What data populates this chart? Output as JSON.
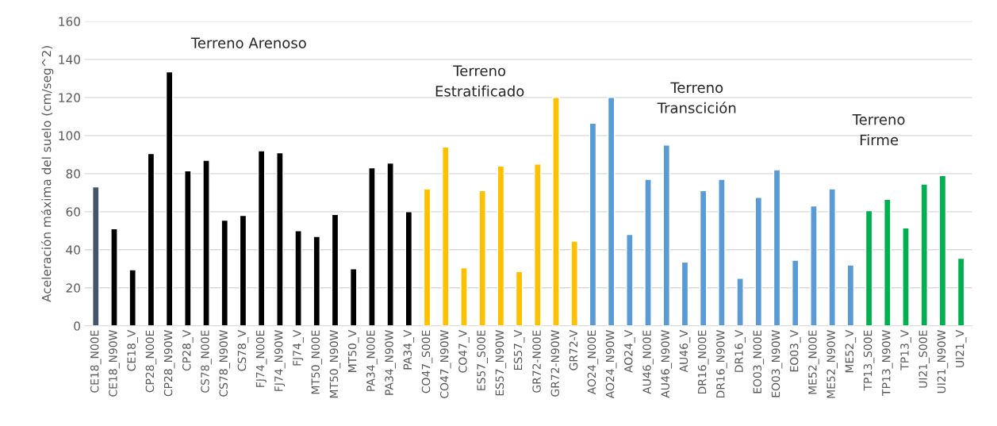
{
  "chart_data": {
    "type": "bar",
    "ylabel": "Aceleración máxima del suelo (cm/seg^2)",
    "categories": [
      "CE18_N00E",
      "CE18_N90W",
      "CE18_V",
      "CP28_N00E",
      "CP28_N90W",
      "CP28_V",
      "CS78_N00E",
      "CS78_N90W",
      "CS78_V",
      "FJ74_N00E",
      "FJ74_N90W",
      "FJ74_V",
      "MT50_N00E",
      "MT50_N90W",
      "MT50_V",
      "PA34_N00E",
      "PA34_N90W",
      "PA34_V",
      "CO47_S00E",
      "CO47_N90W",
      "CO47_V",
      "ES57_S00E",
      "ES57_N90W",
      "ES57_V",
      "GR72-N00E",
      "GR72-N90W",
      "GR72-V",
      "AO24_N00E",
      "AO24_N90W",
      "AO24_V",
      "AU46_N00E",
      "AU46_N90W",
      "AU46_V",
      "DR16_N00E",
      "DR16_N90W",
      "DR16_V",
      "EO03_N00E",
      "EO03_N90W",
      "EO03_V",
      "ME52_N00E",
      "ME52_N90W",
      "ME52_V",
      "TP13_S00E",
      "TP13_N90W",
      "TP13_V",
      "UI21_S00E",
      "UI21_N90W",
      "UI21_V"
    ],
    "values": [
      73,
      51,
      29.5,
      90.5,
      133.5,
      81.5,
      87,
      55.5,
      58,
      92,
      91,
      50,
      47,
      58.5,
      30,
      83,
      85.5,
      60,
      72,
      94,
      30.5,
      71,
      84,
      28.5,
      85,
      120,
      44.5,
      106.5,
      120,
      48,
      77,
      95,
      33.5,
      71,
      77,
      25,
      67.5,
      82,
      34.5,
      63,
      72,
      32,
      60.5,
      66.5,
      51.5,
      74.5,
      79,
      35.5
    ],
    "colors": [
      "#44546a",
      "#000000",
      "#000000",
      "#000000",
      "#000000",
      "#000000",
      "#000000",
      "#000000",
      "#000000",
      "#000000",
      "#000000",
      "#000000",
      "#000000",
      "#000000",
      "#000000",
      "#000000",
      "#000000",
      "#000000",
      "#ffc000",
      "#ffc000",
      "#ffc000",
      "#ffc000",
      "#ffc000",
      "#ffc000",
      "#ffc000",
      "#ffc000",
      "#ffc000",
      "#5b9bd5",
      "#5b9bd5",
      "#5b9bd5",
      "#5b9bd5",
      "#5b9bd5",
      "#5b9bd5",
      "#5b9bd5",
      "#5b9bd5",
      "#5b9bd5",
      "#5b9bd5",
      "#5b9bd5",
      "#5b9bd5",
      "#5b9bd5",
      "#5b9bd5",
      "#5b9bd5",
      "#00b050",
      "#00b050",
      "#00b050",
      "#00b050",
      "#00b050",
      "#00b050"
    ],
    "ylim": [
      0,
      160
    ],
    "yticks": [
      0,
      20,
      40,
      60,
      80,
      100,
      120,
      140,
      160
    ],
    "grid": "y",
    "legend": false,
    "annotations": [
      "Terreno Arenoso",
      "Terreno\nEstratificado",
      "Terreno\nTranscición",
      "Terreno\nFirme"
    ]
  }
}
